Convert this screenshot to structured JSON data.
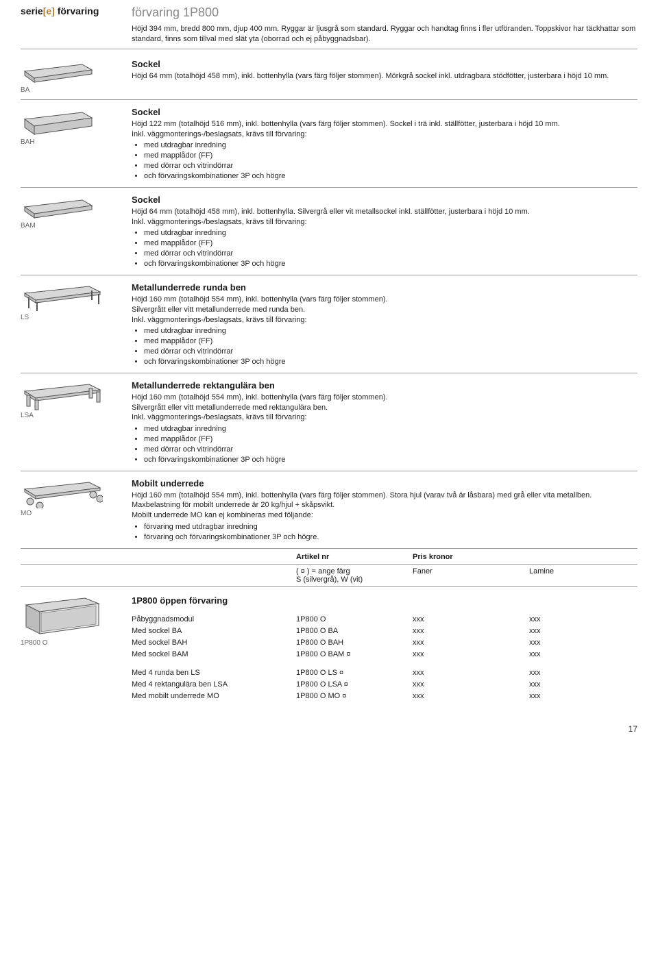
{
  "header": {
    "series_pre": "serie",
    "series_mid": "[e]",
    "series_post": " förvaring",
    "prod_title": "förvaring 1P800",
    "prod_desc": "Höjd 394 mm, bredd 800 mm, djup 400 mm. Ryggar är ljusgrå som standard. Ryggar och handtag finns i fler utföranden. Toppskivor har täckhattar som standard, finns som tillval med slät yta (oborrad och ej påbyggnadsbar)."
  },
  "items": [
    {
      "label": "BA",
      "title": "Sockel",
      "body": "Höjd 64 mm (totalhöjd 458 mm), inkl. bottenhylla (vars färg följer stommen). Mörkgrå sockel inkl. utdragbara stödfötter, justerbara i höjd 10 mm.",
      "bullets": []
    },
    {
      "label": "BAH",
      "title": "Sockel",
      "body": "Höjd 122 mm (totalhöjd 516 mm), inkl. bottenhylla (vars färg följer stommen). Sockel i trä inkl. ställfötter, justerbara i höjd 10 mm.\nInkl. väggmonterings-/beslagsats, krävs till förvaring:",
      "bullets": [
        "med utdragbar inredning",
        "med mapplådor (FF)",
        "med dörrar och vitrindörrar",
        "och förvaringskombinationer 3P och högre"
      ]
    },
    {
      "label": "BAM",
      "title": "Sockel",
      "body": "Höjd 64 mm (totalhöjd 458 mm), inkl. bottenhylla. Silvergrå eller vit metallsockel inkl. ställfötter, justerbara i höjd 10 mm.\nInkl. väggmonterings-/beslagsats, krävs till förvaring:",
      "bullets": [
        "med utdragbar inredning",
        "med mapplådor (FF)",
        "med dörrar och vitrindörrar",
        "och förvaringskombinationer 3P och högre"
      ]
    },
    {
      "label": "LS",
      "title": "Metallunderrede runda ben",
      "body": "Höjd 160 mm (totalhöjd 554 mm), inkl. bottenhylla (vars färg följer stommen).\nSilvergrått eller vitt metallunderrede med runda ben.\nInkl. väggmonterings-/beslagsats, krävs till förvaring:",
      "bullets": [
        "med utdragbar inredning",
        "med mapplådor (FF)",
        "med dörrar och vitrindörrar",
        "och förvaringskombinationer 3P och högre"
      ]
    },
    {
      "label": "LSA",
      "title": "Metallunderrede rektangulära ben",
      "body": "Höjd 160 mm (totalhöjd 554 mm), inkl. bottenhylla (vars färg följer stommen).\nSilvergrått eller vitt metallunderrede med rektangulära ben.\nInkl. väggmonterings-/beslagsats, krävs till förvaring:",
      "bullets": [
        "med utdragbar inredning",
        "med mapplådor (FF)",
        "med dörrar och vitrindörrar",
        "och förvaringskombinationer 3P och högre"
      ]
    },
    {
      "label": "MO",
      "title": "Mobilt underrede",
      "body": "Höjd 160 mm (totalhöjd 554 mm), inkl. bottenhylla (vars färg följer stommen). Stora hjul (varav två är låsbara) med grå eller vita metallben. Maxbelastning för mobilt underrede är 20 kg/hjul + skåpsvikt.\nMobilt underrede MO kan ej kombineras med följande:",
      "bullets": [
        "förvaring med utdragbar inredning",
        "förvaring och förvaringskombinationer 3P och högre."
      ]
    }
  ],
  "priceHeader": {
    "art": "Artikel nr",
    "pris": "Pris kronor"
  },
  "priceSub": {
    "art": "( ¤ ) = ange färg\nS (silvergrå), W (vit)",
    "fan": "Faner",
    "lam": "Lamine"
  },
  "openSection": {
    "imgLabel": "1P800 O",
    "title": "1P800 öppen förvaring",
    "blocks": [
      [
        {
          "desc": "Påbyggnadsmodul",
          "art": "1P800 O",
          "fan": "xxx",
          "lam": "xxx"
        },
        {
          "desc": "Med sockel BA",
          "art": "1P800 O BA",
          "fan": "xxx",
          "lam": "xxx"
        },
        {
          "desc": "Med sockel BAH",
          "art": "1P800 O BAH",
          "fan": "xxx",
          "lam": "xxx"
        },
        {
          "desc": "Med sockel BAM",
          "art": "1P800 O BAM ¤",
          "fan": "xxx",
          "lam": "xxx"
        }
      ],
      [
        {
          "desc": "Med 4 runda ben LS",
          "art": "1P800 O LS ¤",
          "fan": "xxx",
          "lam": "xxx"
        },
        {
          "desc": "Med 4 rektangulära ben LSA",
          "art": "1P800 O LSA ¤",
          "fan": "xxx",
          "lam": "xxx"
        },
        {
          "desc": "Med mobilt underrede MO",
          "art": "1P800 O MO ¤",
          "fan": "xxx",
          "lam": "xxx"
        }
      ]
    ]
  },
  "pageNumber": "17",
  "svg": {
    "slab": "<svg width='110' height='36' viewBox='0 0 110 36'><polygon points='6,16 90,6 104,14 20,26' fill='#d8d8d8' stroke='#555' stroke-width='1'/><polygon points='6,16 20,26 20,32 6,22' fill='#bcbcbc' stroke='#555' stroke-width='1'/><polygon points='20,26 104,14 104,20 20,32' fill='#c8c8c8' stroke='#555' stroke-width='1'/></svg>",
    "slab_tall": "<svg width='110' height='42' viewBox='0 0 110 42'><polygon points='6,16 90,6 104,14 20,26' fill='#d8d8d8' stroke='#555' stroke-width='1'/><polygon points='6,16 20,26 20,38 6,28' fill='#bcbcbc' stroke='#555' stroke-width='1'/><polygon points='20,26 104,14 104,26 20,38' fill='#c8c8c8' stroke='#555' stroke-width='1'/></svg>",
    "legs_round": "<svg width='120' height='42' viewBox='0 0 120 42'><polygon points='6,14 100,4 116,12 22,24' fill='#d8d8d8' stroke='#555' stroke-width='1'/><polygon points='6,14 22,24 22,28 6,18' fill='#c0c0c0' stroke='#555' stroke-width='1'/><polygon points='22,24 116,12 116,16 22,28' fill='#c8c8c8' stroke='#555' stroke-width='1'/><line x1='12' y1='20' x2='12' y2='36' stroke='#555' stroke-width='2'/><line x1='24' y1='27' x2='24' y2='40' stroke='#555' stroke-width='2'/><line x1='104' y1='10' x2='104' y2='24' stroke='#555' stroke-width='2'/><line x1='114' y1='15' x2='114' y2='30' stroke='#555' stroke-width='2'/></svg>",
    "legs_rect": "<svg width='120' height='42' viewBox='0 0 120 42'><polygon points='6,14 100,4 116,12 22,24' fill='#d8d8d8' stroke='#555' stroke-width='1'/><polygon points='6,14 22,24 22,28 6,18' fill='#c0c0c0' stroke='#555' stroke-width='1'/><polygon points='22,24 116,12 116,16 22,28' fill='#c8c8c8' stroke='#555' stroke-width='1'/><rect x='9' y='20' width='5' height='16' fill='#c8c8c8' stroke='#555' stroke-width='1'/><rect x='21' y='27' width='5' height='14' fill='#c8c8c8' stroke='#555' stroke-width='1'/><rect x='100' y='10' width='5' height='14' fill='#c8c8c8' stroke='#555' stroke-width='1'/><rect x='111' y='15' width='5' height='15' fill='#c8c8c8' stroke='#555' stroke-width='1'/></svg>",
    "wheels": "<svg width='120' height='42' viewBox='0 0 120 42'><polygon points='6,14 100,4 116,12 22,24' fill='#d8d8d8' stroke='#555' stroke-width='1'/><polygon points='6,14 22,24 22,28 6,18' fill='#c0c0c0' stroke='#555' stroke-width='1'/><polygon points='22,24 116,12 116,16 22,28' fill='#c8c8c8' stroke='#555' stroke-width='1'/><circle cx='14' cy='32' r='5' fill='#ccc' stroke='#555' stroke-width='1'/><circle cx='28' cy='38' r='5' fill='#ccc' stroke='#555' stroke-width='1'/><circle cx='106' cy='22' r='5' fill='#ccc' stroke='#555' stroke-width='1'/><circle cx='116' cy='28' r='5' fill='#ccc' stroke='#555' stroke-width='1'/></svg>",
    "open": "<svg width='120' height='60' viewBox='0 0 120 60'><polygon points='8,12 94,2 114,10 28,22' fill='#d8d8d8' stroke='#555' stroke-width='1'/><polygon points='8,12 28,22 28,54 8,44' fill='#bcbcbc' stroke='#555' stroke-width='1'/><polygon points='28,22 114,10 114,42 28,54' fill='#eaeaea' stroke='#555' stroke-width='1'/><polygon points='30,24 110,13 110,40 30,51' fill='#cfcfcf' stroke='#777' stroke-width='0.7'/></svg>"
  },
  "svgMap": [
    "slab",
    "slab_tall",
    "slab",
    "legs_round",
    "legs_rect",
    "wheels"
  ]
}
